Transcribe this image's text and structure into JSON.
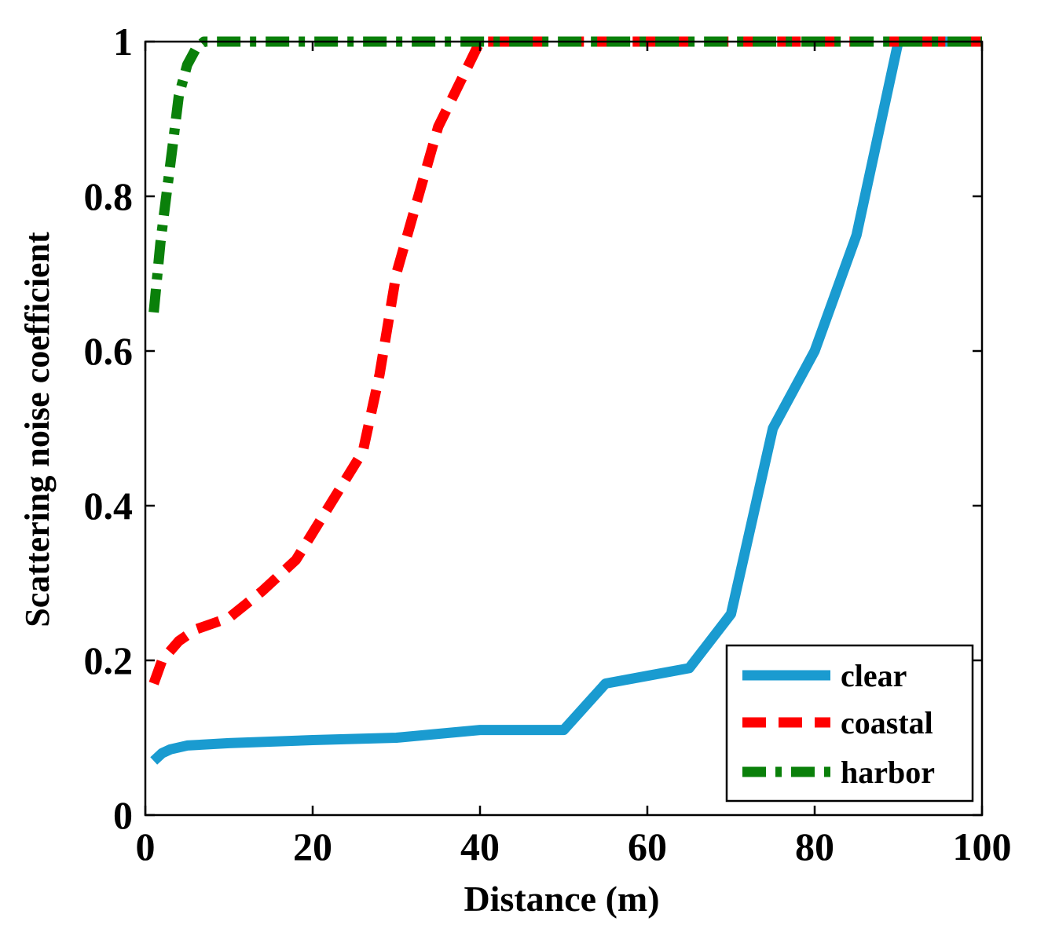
{
  "chart_data": {
    "type": "line",
    "title": "",
    "xlabel": "Distance (m)",
    "ylabel": "Scattering noise coefficient",
    "xlim": [
      0,
      100
    ],
    "ylim": [
      0,
      1
    ],
    "xticks": [
      0,
      20,
      40,
      60,
      80,
      100
    ],
    "yticks": [
      0,
      0.2,
      0.4,
      0.6,
      0.8,
      1
    ],
    "xtick_labels": [
      "0",
      "20",
      "40",
      "60",
      "80",
      "100"
    ],
    "ytick_labels": [
      "0",
      "0.2",
      "0.4",
      "0.6",
      "0.8",
      "1"
    ],
    "grid": false,
    "legend_position": "bottom-right",
    "series": [
      {
        "name": "clear",
        "color": "#1a9bd0",
        "style": "solid",
        "x": [
          1,
          2,
          3,
          5,
          10,
          20,
          30,
          40,
          50,
          55,
          60,
          65,
          70,
          75,
          80,
          85,
          90,
          100
        ],
        "y": [
          0.07,
          0.08,
          0.085,
          0.09,
          0.093,
          0.097,
          0.1,
          0.11,
          0.11,
          0.17,
          0.18,
          0.19,
          0.26,
          0.5,
          0.6,
          0.75,
          1.0,
          1.0
        ]
      },
      {
        "name": "coastal",
        "color": "#ff0000",
        "style": "dashed",
        "x": [
          1,
          2,
          4,
          6,
          10,
          14,
          18,
          22,
          26,
          28,
          30,
          35,
          40,
          100
        ],
        "y": [
          0.17,
          0.2,
          0.225,
          0.24,
          0.255,
          0.29,
          0.33,
          0.4,
          0.47,
          0.57,
          0.7,
          0.89,
          1.0,
          1.0
        ]
      },
      {
        "name": "harbor",
        "color": "#0a800a",
        "style": "dashdot",
        "x": [
          1,
          1.8,
          2.5,
          3.2,
          4,
          5,
          6,
          7,
          100
        ],
        "y": [
          0.65,
          0.74,
          0.8,
          0.86,
          0.93,
          0.97,
          0.99,
          1.0,
          1.0
        ]
      }
    ]
  }
}
